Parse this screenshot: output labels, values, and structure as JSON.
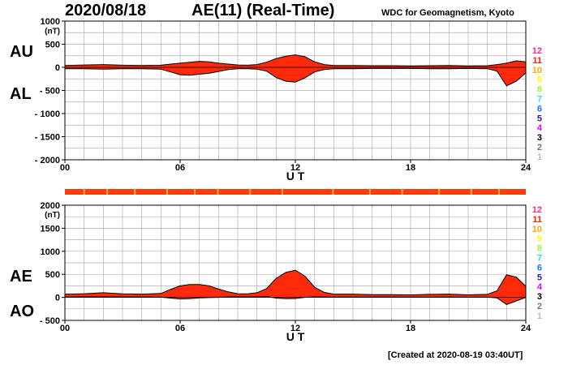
{
  "header": {
    "date": "2020/08/18",
    "title": "AE(11) (Real-Time)",
    "organization": "WDC for Geomagnetism, Kyoto"
  },
  "footer": {
    "created": "[Created at 2020-08-19 03:40UT]"
  },
  "colors": {
    "fill": "#ff2a0a",
    "outline": "#000000",
    "grid": "#b0b0b0",
    "strip": "#ff3b0e",
    "strip_accent": "#ffb020"
  },
  "station_legend": [
    {
      "label": "12",
      "color": "#ff2a8a"
    },
    {
      "label": "11",
      "color": "#ff2200"
    },
    {
      "label": "10",
      "color": "#ffaa00"
    },
    {
      "label": "9",
      "color": "#ffff00"
    },
    {
      "label": "8",
      "color": "#99ff33"
    },
    {
      "label": "7",
      "color": "#33dddd"
    },
    {
      "label": "6",
      "color": "#1177ff"
    },
    {
      "label": "5",
      "color": "#2222aa"
    },
    {
      "label": "4",
      "color": "#dd00ff"
    },
    {
      "label": "3",
      "color": "#000000"
    },
    {
      "label": "2",
      "color": "#777777"
    },
    {
      "label": "1",
      "color": "#bbbbbb"
    }
  ],
  "chart_data": [
    {
      "type": "area",
      "upper_label": "AU",
      "lower_label": "AL",
      "unit": "(nT)",
      "xlabel": "U T",
      "xlim": [
        0,
        24
      ],
      "ylim": [
        -2000,
        1000
      ],
      "x_ticks": [
        "00",
        "06",
        "12",
        "18",
        "24"
      ],
      "y_ticks": [
        "1000",
        "500",
        "0",
        "- 500",
        "- 1000",
        "- 1500",
        "- 2000"
      ],
      "grid": true,
      "series": [
        {
          "name": "AU",
          "x": [
            0,
            1,
            2,
            3,
            4,
            5,
            5.5,
            6,
            6.5,
            7,
            7.5,
            8,
            8.5,
            9,
            9.5,
            10,
            10.5,
            11,
            11.5,
            12,
            12.5,
            13,
            13.5,
            14,
            15,
            16,
            17,
            18,
            19,
            20,
            21,
            22,
            22.5,
            23,
            23.5,
            24
          ],
          "values": [
            40,
            50,
            60,
            45,
            40,
            45,
            70,
            90,
            110,
            130,
            120,
            90,
            70,
            50,
            45,
            60,
            110,
            190,
            240,
            270,
            230,
            120,
            60,
            40,
            40,
            35,
            35,
            30,
            35,
            40,
            30,
            35,
            60,
            90,
            140,
            120
          ]
        },
        {
          "name": "AL",
          "x": [
            0,
            1,
            2,
            3,
            4,
            5,
            5.5,
            6,
            6.5,
            7,
            7.5,
            8,
            8.5,
            9,
            9.5,
            10,
            10.5,
            11,
            11.5,
            12,
            12.5,
            13,
            13.5,
            14,
            15,
            16,
            17,
            18,
            19,
            20,
            21,
            22,
            22.5,
            23,
            23.5,
            24
          ],
          "values": [
            -30,
            -30,
            -40,
            -30,
            -30,
            -40,
            -100,
            -160,
            -170,
            -150,
            -130,
            -90,
            -50,
            -30,
            -30,
            -40,
            -80,
            -220,
            -300,
            -320,
            -230,
            -100,
            -50,
            -30,
            -30,
            -25,
            -25,
            -25,
            -30,
            -30,
            -25,
            -30,
            -80,
            -400,
            -300,
            -120
          ]
        }
      ]
    },
    {
      "type": "area",
      "upper_label": "AE",
      "lower_label": "AO",
      "unit": "(nT)",
      "xlabel": "U T",
      "xlim": [
        0,
        24
      ],
      "ylim": [
        -500,
        2000
      ],
      "x_ticks": [
        "00",
        "06",
        "12",
        "18",
        "24"
      ],
      "y_ticks": [
        "2000",
        "1500",
        "1000",
        "500",
        "0",
        "- 500"
      ],
      "grid": true,
      "series": [
        {
          "name": "AE",
          "x": [
            0,
            1,
            2,
            3,
            4,
            5,
            5.5,
            6,
            6.5,
            7,
            7.5,
            8,
            8.5,
            9,
            9.5,
            10,
            10.5,
            11,
            11.5,
            12,
            12.5,
            13,
            13.5,
            14,
            15,
            16,
            17,
            18,
            19,
            20,
            21,
            22,
            22.5,
            23,
            23.5,
            24
          ],
          "values": [
            70,
            80,
            100,
            75,
            70,
            85,
            170,
            250,
            280,
            280,
            250,
            180,
            120,
            80,
            75,
            100,
            190,
            410,
            540,
            590,
            460,
            220,
            110,
            70,
            70,
            60,
            60,
            55,
            65,
            70,
            55,
            65,
            140,
            490,
            440,
            240
          ]
        },
        {
          "name": "AO",
          "x": [
            0,
            1,
            2,
            3,
            4,
            5,
            5.5,
            6,
            6.5,
            7,
            7.5,
            8,
            8.5,
            9,
            9.5,
            10,
            10.5,
            11,
            11.5,
            12,
            12.5,
            13,
            13.5,
            14,
            15,
            16,
            17,
            18,
            19,
            20,
            21,
            22,
            22.5,
            23,
            23.5,
            24
          ],
          "values": [
            5,
            10,
            10,
            8,
            5,
            3,
            -15,
            -35,
            -30,
            -10,
            -5,
            0,
            10,
            10,
            8,
            10,
            15,
            -15,
            -30,
            -25,
            0,
            10,
            5,
            5,
            5,
            5,
            5,
            3,
            3,
            5,
            3,
            3,
            -10,
            -155,
            -80,
            0
          ]
        }
      ]
    }
  ]
}
